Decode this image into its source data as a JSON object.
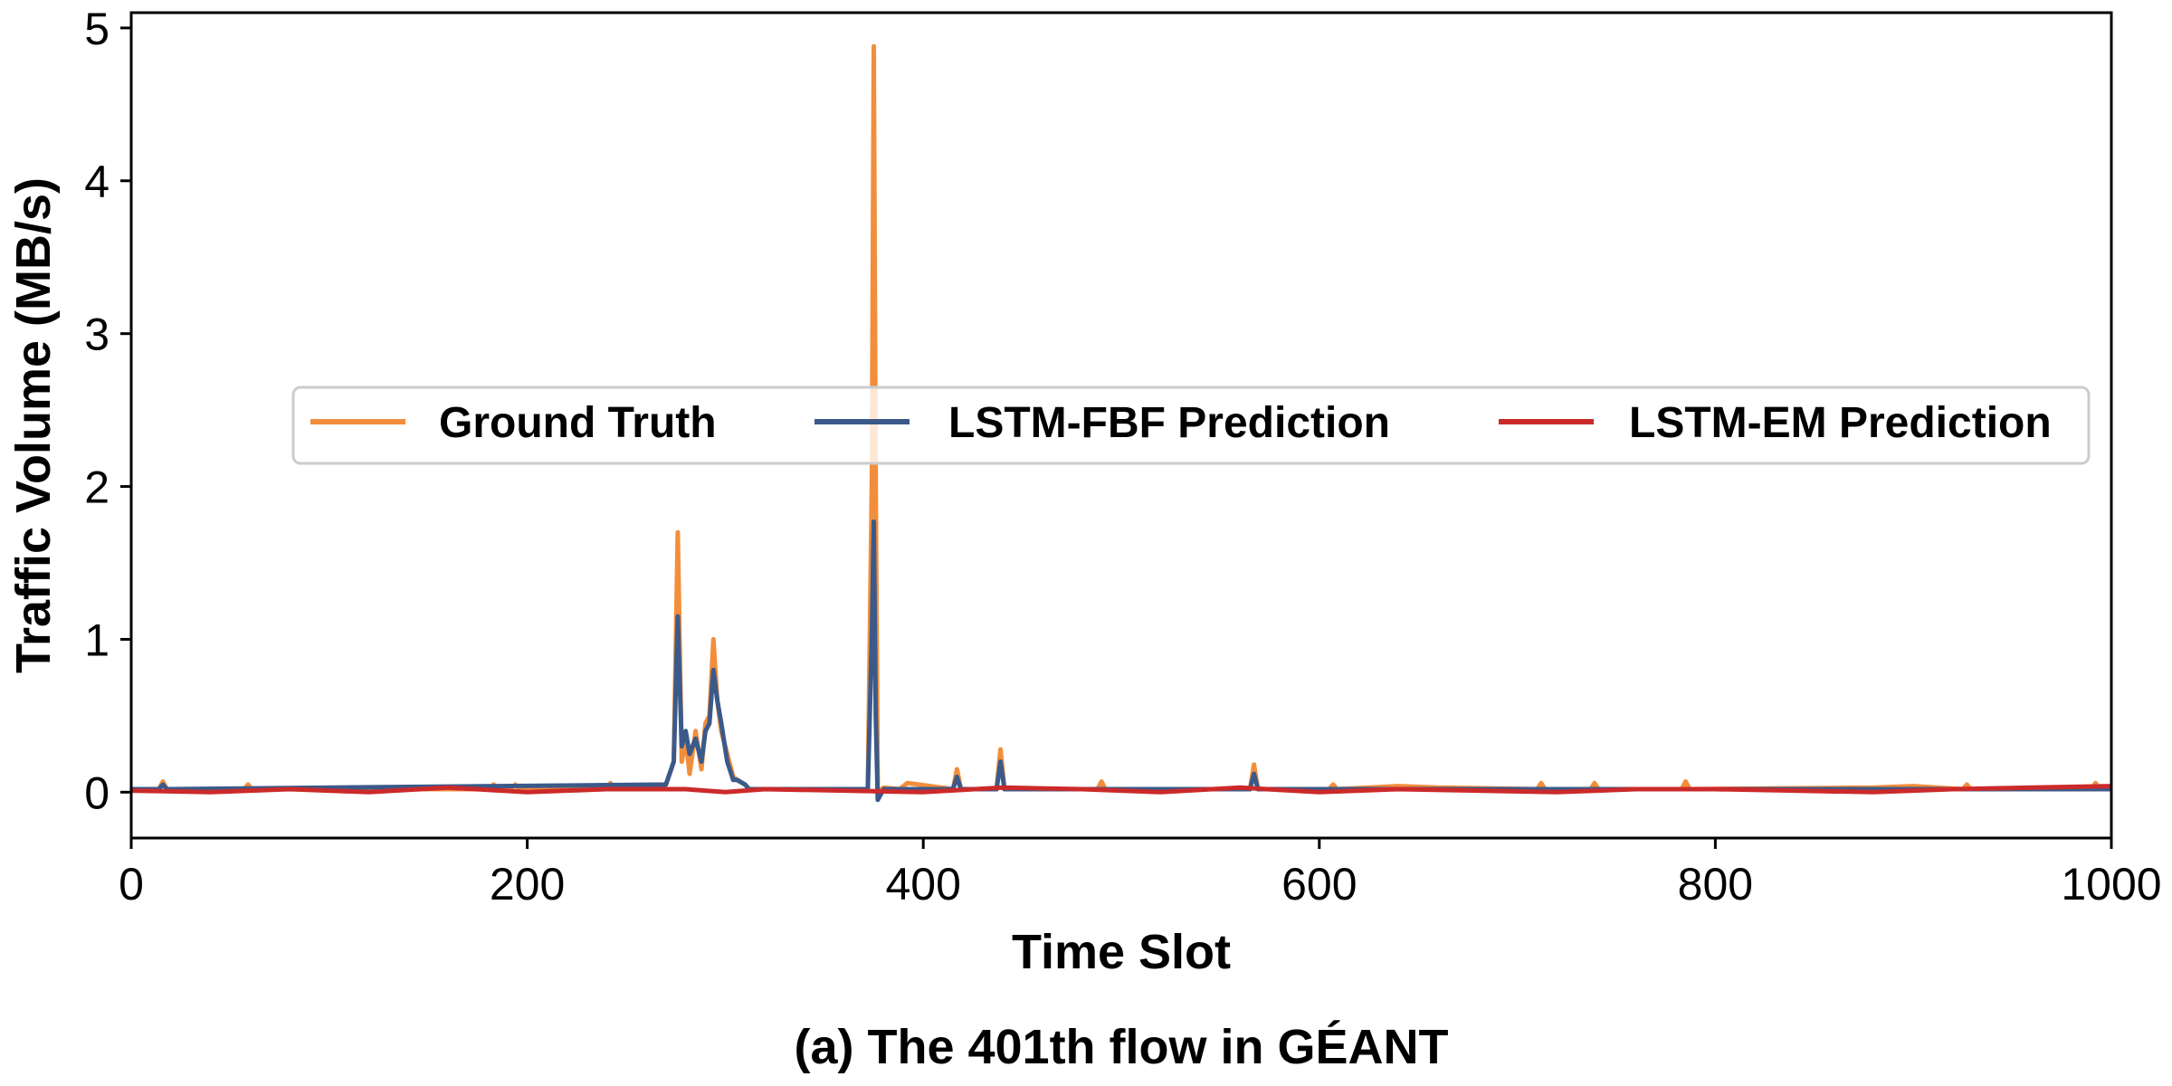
{
  "chart_data": {
    "type": "line",
    "caption": "(a) The 401th flow in GÉANT",
    "xlabel": "Time Slot",
    "ylabel": "Traffic Volume (MB/s)",
    "xlim": [
      0,
      1000
    ],
    "ylim": [
      -0.3,
      5.1
    ],
    "xticks": [
      0,
      200,
      400,
      600,
      800,
      1000
    ],
    "yticks": [
      0,
      1,
      2,
      3,
      4,
      5
    ],
    "grid": false,
    "legend": {
      "placement": "center-left",
      "ncol": 3
    },
    "series": [
      {
        "name": "Ground Truth",
        "color": "#f28e3b",
        "x": [
          0,
          14,
          16,
          18,
          40,
          57,
          59,
          61,
          120,
          181,
          183,
          185,
          192,
          194,
          196,
          240,
          242,
          244,
          270,
          274,
          276,
          278,
          280,
          282,
          285,
          288,
          290,
          292,
          294,
          296,
          298,
          301,
          304,
          306,
          310,
          312,
          320,
          350,
          372,
          374,
          375,
          376,
          377,
          380,
          388,
          392,
          415,
          417,
          419,
          421,
          437,
          439,
          441,
          443,
          488,
          490,
          492,
          565,
          567,
          569,
          571,
          605,
          607,
          609,
          640,
          660,
          710,
          712,
          714,
          737,
          739,
          741,
          783,
          785,
          787,
          880,
          900,
          925,
          927,
          929,
          990,
          992,
          994,
          1000
        ],
        "y": [
          0.02,
          0.02,
          0.07,
          0.02,
          0.02,
          0.02,
          0.05,
          0.02,
          0.02,
          0.02,
          0.05,
          0.02,
          0.02,
          0.05,
          0.02,
          0.02,
          0.06,
          0.02,
          0.05,
          0.2,
          1.7,
          0.2,
          0.35,
          0.12,
          0.4,
          0.15,
          0.45,
          0.5,
          1.0,
          0.6,
          0.4,
          0.25,
          0.1,
          0.08,
          0.05,
          0.02,
          0.02,
          0.02,
          0.02,
          2.0,
          4.88,
          2.0,
          0.0,
          0.03,
          0.02,
          0.06,
          0.02,
          0.15,
          0.02,
          0.02,
          0.02,
          0.28,
          0.02,
          0.02,
          0.02,
          0.07,
          0.02,
          0.02,
          0.18,
          0.02,
          0.02,
          0.02,
          0.05,
          0.02,
          0.04,
          0.03,
          0.02,
          0.06,
          0.02,
          0.02,
          0.06,
          0.02,
          0.02,
          0.07,
          0.02,
          0.03,
          0.04,
          0.02,
          0.05,
          0.02,
          0.02,
          0.06,
          0.02,
          0.02
        ]
      },
      {
        "name": "LSTM-FBF Prediction",
        "color": "#3b5a8a",
        "x": [
          0,
          14,
          16,
          18,
          270,
          274,
          276,
          278,
          280,
          282,
          285,
          288,
          290,
          292,
          294,
          296,
          298,
          301,
          304,
          306,
          310,
          312,
          372,
          374,
          375,
          376,
          377,
          380,
          415,
          417,
          419,
          437,
          439,
          441,
          443,
          565,
          567,
          569,
          571,
          1000
        ],
        "y": [
          0.02,
          0.02,
          0.05,
          0.02,
          0.05,
          0.2,
          1.15,
          0.3,
          0.4,
          0.25,
          0.35,
          0.2,
          0.4,
          0.45,
          0.8,
          0.6,
          0.45,
          0.2,
          0.08,
          0.08,
          0.05,
          0.02,
          0.02,
          1.0,
          1.77,
          0.5,
          -0.05,
          0.02,
          0.02,
          0.1,
          0.02,
          0.02,
          0.2,
          0.02,
          0.02,
          0.02,
          0.12,
          0.02,
          0.02,
          0.02
        ]
      },
      {
        "name": "LSTM-EM Prediction",
        "color": "#cc2a2a",
        "x": [
          0,
          40,
          80,
          120,
          160,
          200,
          240,
          280,
          300,
          320,
          360,
          400,
          440,
          480,
          520,
          560,
          600,
          640,
          680,
          720,
          760,
          800,
          840,
          880,
          920,
          960,
          1000
        ],
        "y": [
          0.01,
          0.0,
          0.02,
          0.0,
          0.03,
          0.0,
          0.02,
          0.02,
          0.0,
          0.02,
          0.01,
          0.0,
          0.03,
          0.02,
          0.0,
          0.03,
          0.0,
          0.02,
          0.01,
          0.0,
          0.02,
          0.02,
          0.01,
          0.0,
          0.02,
          0.03,
          0.04
        ]
      }
    ]
  }
}
